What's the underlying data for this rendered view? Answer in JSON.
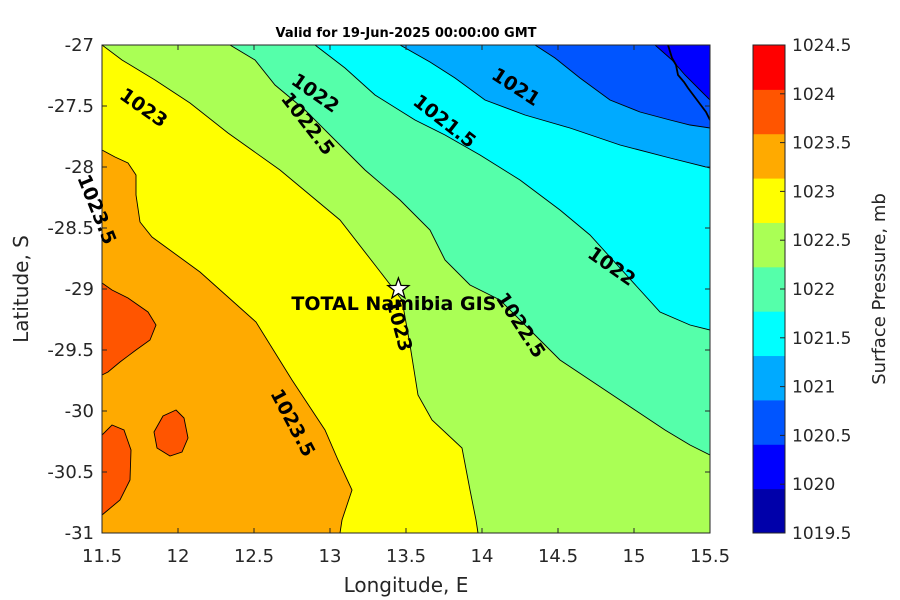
{
  "chart_data": {
    "type": "contour",
    "title": "Valid for 19-Jun-2025 00:00:00 GMT",
    "xlabel": "Longitude, E",
    "ylabel": "Latitude, S",
    "xlim": [
      11.5,
      15.5
    ],
    "ylim": [
      -31,
      -27
    ],
    "x_ticks": [
      "11.5",
      "12",
      "12.5",
      "13",
      "13.5",
      "14",
      "14.5",
      "15",
      "15.5"
    ],
    "y_ticks": [
      "-27",
      "-27.5",
      "-28",
      "-28.5",
      "-29",
      "-29.5",
      "-30",
      "-30.5",
      "-31"
    ],
    "colorbar": {
      "label": "Surface Pressure, mb",
      "levels": [
        1019.5,
        1020,
        1020.5,
        1021,
        1021.5,
        1022,
        1022.5,
        1023,
        1023.5,
        1024,
        1024.5
      ],
      "tick_labels": [
        "1019.5",
        "1020",
        "1020.5",
        "1021",
        "1021.5",
        "1022",
        "1022.5",
        "1023",
        "1023.5",
        "1024",
        "1024.5"
      ],
      "colors": [
        "#0000aa",
        "#0000ff",
        "#0055ff",
        "#00aaff",
        "#00ffff",
        "#55ffaa",
        "#aaff55",
        "#ffff00",
        "#ffaa00",
        "#ff5500",
        "#ff0000"
      ]
    },
    "contour_labels": [
      {
        "text": "1023",
        "lon": 11.77,
        "lat": -27.52,
        "angle": 35
      },
      {
        "text": "1022.5",
        "lon": 12.85,
        "lat": -27.65,
        "angle": 52
      },
      {
        "text": "1022",
        "lon": 12.9,
        "lat": -27.4,
        "angle": 35
      },
      {
        "text": "1021.5",
        "lon": 13.75,
        "lat": -27.63,
        "angle": 38
      },
      {
        "text": "1021",
        "lon": 14.22,
        "lat": -27.35,
        "angle": 33
      },
      {
        "text": "1023.5",
        "lon": 11.46,
        "lat": -28.35,
        "angle": 68
      },
      {
        "text": "1022",
        "lon": 14.85,
        "lat": -28.82,
        "angle": 35
      },
      {
        "text": "1023",
        "lon": 13.45,
        "lat": -29.3,
        "angle": 75
      },
      {
        "text": "1022.5",
        "lon": 14.25,
        "lat": -29.3,
        "angle": 57
      },
      {
        "text": "1023.5",
        "lon": 12.75,
        "lat": -30.1,
        "angle": 62
      }
    ],
    "site": {
      "name": "TOTAL Namibia GIS",
      "lon": 13.45,
      "lat": -29.0
    },
    "legend": "none",
    "grid": false
  }
}
